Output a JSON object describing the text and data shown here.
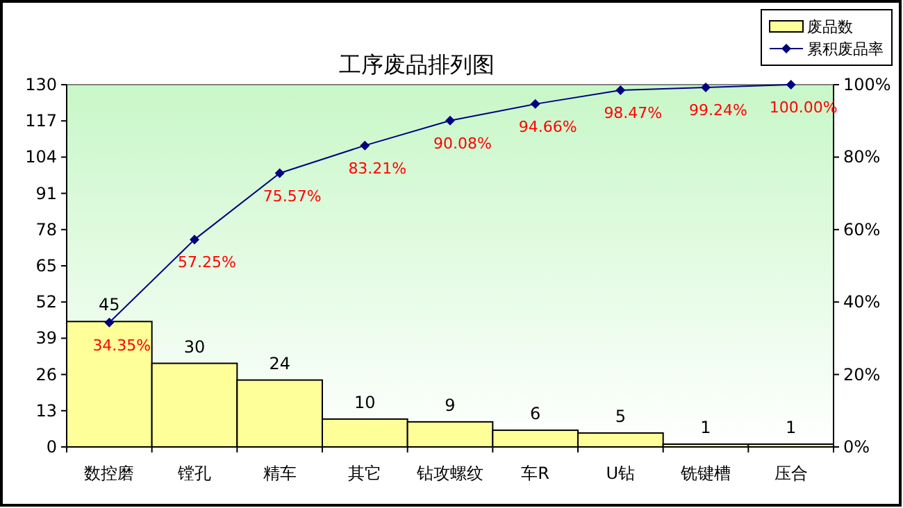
{
  "chart_data": {
    "type": "bar",
    "title": "工序废品排列图",
    "categories": [
      "数控磨",
      "镗孔",
      "精车",
      "其它",
      "钻攻螺纹",
      "车R",
      "U钻",
      "铣键槽",
      "压合"
    ],
    "series": [
      {
        "name": "废品数",
        "color": "#ffff99",
        "values": [
          45,
          30,
          24,
          10,
          9,
          6,
          5,
          1,
          1
        ]
      },
      {
        "name": "累积废品率",
        "type": "line",
        "axis": "y2",
        "color": "#000080",
        "marker": "diamond",
        "values": [
          34.35,
          57.25,
          75.57,
          83.21,
          90.08,
          94.66,
          98.47,
          99.24,
          100.0
        ],
        "value_labels": [
          "34.35%",
          "57.25%",
          "75.57%",
          "83.21%",
          "90.08%",
          "94.66%",
          "98.47%",
          "99.24%",
          "100.00%"
        ]
      }
    ],
    "ylim": [
      0,
      130
    ],
    "yticks": [
      0,
      13,
      26,
      39,
      52,
      65,
      78,
      91,
      104,
      117,
      130
    ],
    "y2lim": [
      0,
      100
    ],
    "y2ticks": [
      {
        "value": 0,
        "label": "0%"
      },
      {
        "value": 20,
        "label": "20%"
      },
      {
        "value": 40,
        "label": "40%"
      },
      {
        "value": 60,
        "label": "60%"
      },
      {
        "value": 80,
        "label": "80%"
      },
      {
        "value": 100,
        "label": "100%"
      }
    ],
    "data_labels": true,
    "legend": "top right"
  }
}
